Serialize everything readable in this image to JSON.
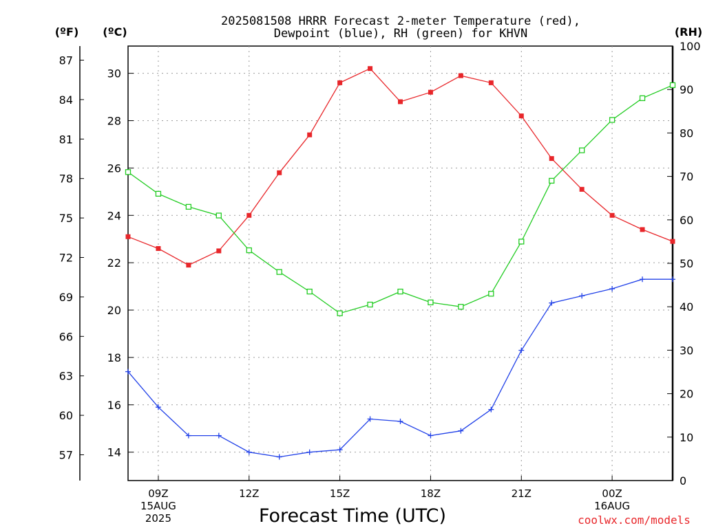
{
  "chart_data": {
    "type": "line",
    "title_lines": [
      "2025081508 HRRR Forecast 2-meter Temperature (red),",
      "Dewpoint (blue), RH (green) for KHVN"
    ],
    "xlabel": "Forecast Time (UTC)",
    "watermark": "coolwx.com/models",
    "axis_units": {
      "fahrenheit": "(ºF)",
      "celsius": "(ºC)",
      "rh": "(RH)"
    },
    "x": [
      "08Z",
      "09Z",
      "10Z",
      "11Z",
      "12Z",
      "13Z",
      "14Z",
      "15Z",
      "16Z",
      "17Z",
      "18Z",
      "19Z",
      "20Z",
      "21Z",
      "22Z",
      "23Z",
      "00Z",
      "01Z",
      "02Z"
    ],
    "x_ticks": [
      {
        "label": "09Z",
        "date": "15AUG",
        "year": "2025"
      },
      {
        "label": "12Z"
      },
      {
        "label": "15Z"
      },
      {
        "label": "18Z"
      },
      {
        "label": "21Z"
      },
      {
        "label": "00Z",
        "date": "16AUG"
      }
    ],
    "celsius_ticks": [
      "14",
      "16",
      "18",
      "20",
      "22",
      "24",
      "26",
      "28",
      "30"
    ],
    "fahrenheit_ticks": [
      "57",
      "60",
      "63",
      "66",
      "69",
      "72",
      "75",
      "78",
      "81",
      "84",
      "87"
    ],
    "rh_ticks": [
      "0",
      "10",
      "20",
      "30",
      "40",
      "50",
      "60",
      "70",
      "80",
      "90",
      "100"
    ],
    "celsius_range": [
      12.8,
      31.15
    ],
    "rh_range": [
      0,
      100
    ],
    "grid": true,
    "series": [
      {
        "name": "Temperature",
        "axis": "celsius",
        "color": "#e8262a",
        "marker": "filled-square",
        "values": [
          23.1,
          22.6,
          21.9,
          22.5,
          24.0,
          25.8,
          27.4,
          29.6,
          30.2,
          28.8,
          29.2,
          29.9,
          29.6,
          28.2,
          26.4,
          25.1,
          24.0,
          23.4,
          22.9
        ]
      },
      {
        "name": "Dewpoint",
        "axis": "celsius",
        "color": "#2040e8",
        "marker": "plus",
        "values": [
          17.4,
          15.9,
          14.7,
          14.7,
          14.0,
          13.8,
          14.0,
          14.1,
          15.4,
          15.3,
          14.7,
          14.9,
          15.8,
          18.3,
          20.3,
          20.6,
          20.9,
          21.3,
          21.3
        ]
      },
      {
        "name": "RH",
        "axis": "rh",
        "color": "#22cc22",
        "marker": "open-square",
        "values": [
          71.0,
          66.0,
          63.0,
          61.0,
          53.0,
          48.0,
          43.5,
          38.5,
          40.5,
          43.5,
          41.0,
          40.0,
          43.0,
          55.0,
          69.0,
          76.0,
          83.0,
          88.0,
          91.0
        ]
      }
    ]
  }
}
